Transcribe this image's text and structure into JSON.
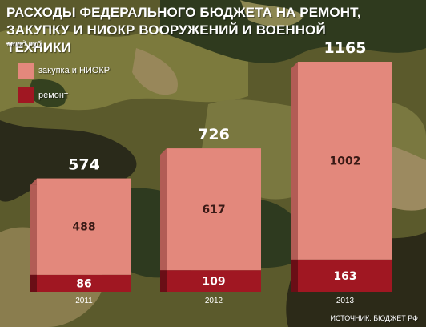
{
  "title": "РАСХОДЫ ФЕДЕРАЛЬНОГО БЮДЖЕТА НА РЕМОНТ, ЗАКУПКУ И НИОКР ВООРУЖЕНИЙ И ВОЕННОЙ ТЕХНИКИ",
  "unit": "млрд руб.",
  "source": "ИСТОЧНИК: БЮДЖЕТ РФ",
  "colors": {
    "procurement": "#e3887c",
    "procurement_side": "#b25c55",
    "repair": "#a01722",
    "repair_side": "#6a0e16",
    "procurement_text": "#3a1a16",
    "repair_text": "#ffffff"
  },
  "chart_data": {
    "type": "bar",
    "stacked": true,
    "categories": [
      "2011",
      "2012",
      "2013"
    ],
    "series": [
      {
        "name": "ремонт",
        "values": [
          86,
          109,
          163
        ]
      },
      {
        "name": "закупка и НИОКР",
        "values": [
          488,
          617,
          1002
        ]
      }
    ],
    "totals": [
      "574",
      "726",
      "1165"
    ],
    "labels": {
      "ремонт": [
        "86",
        "109",
        "163"
      ],
      "закупка и НИОКР": [
        "488",
        "617",
        "1002"
      ]
    },
    "legend_position": "top-left",
    "grid": false
  }
}
